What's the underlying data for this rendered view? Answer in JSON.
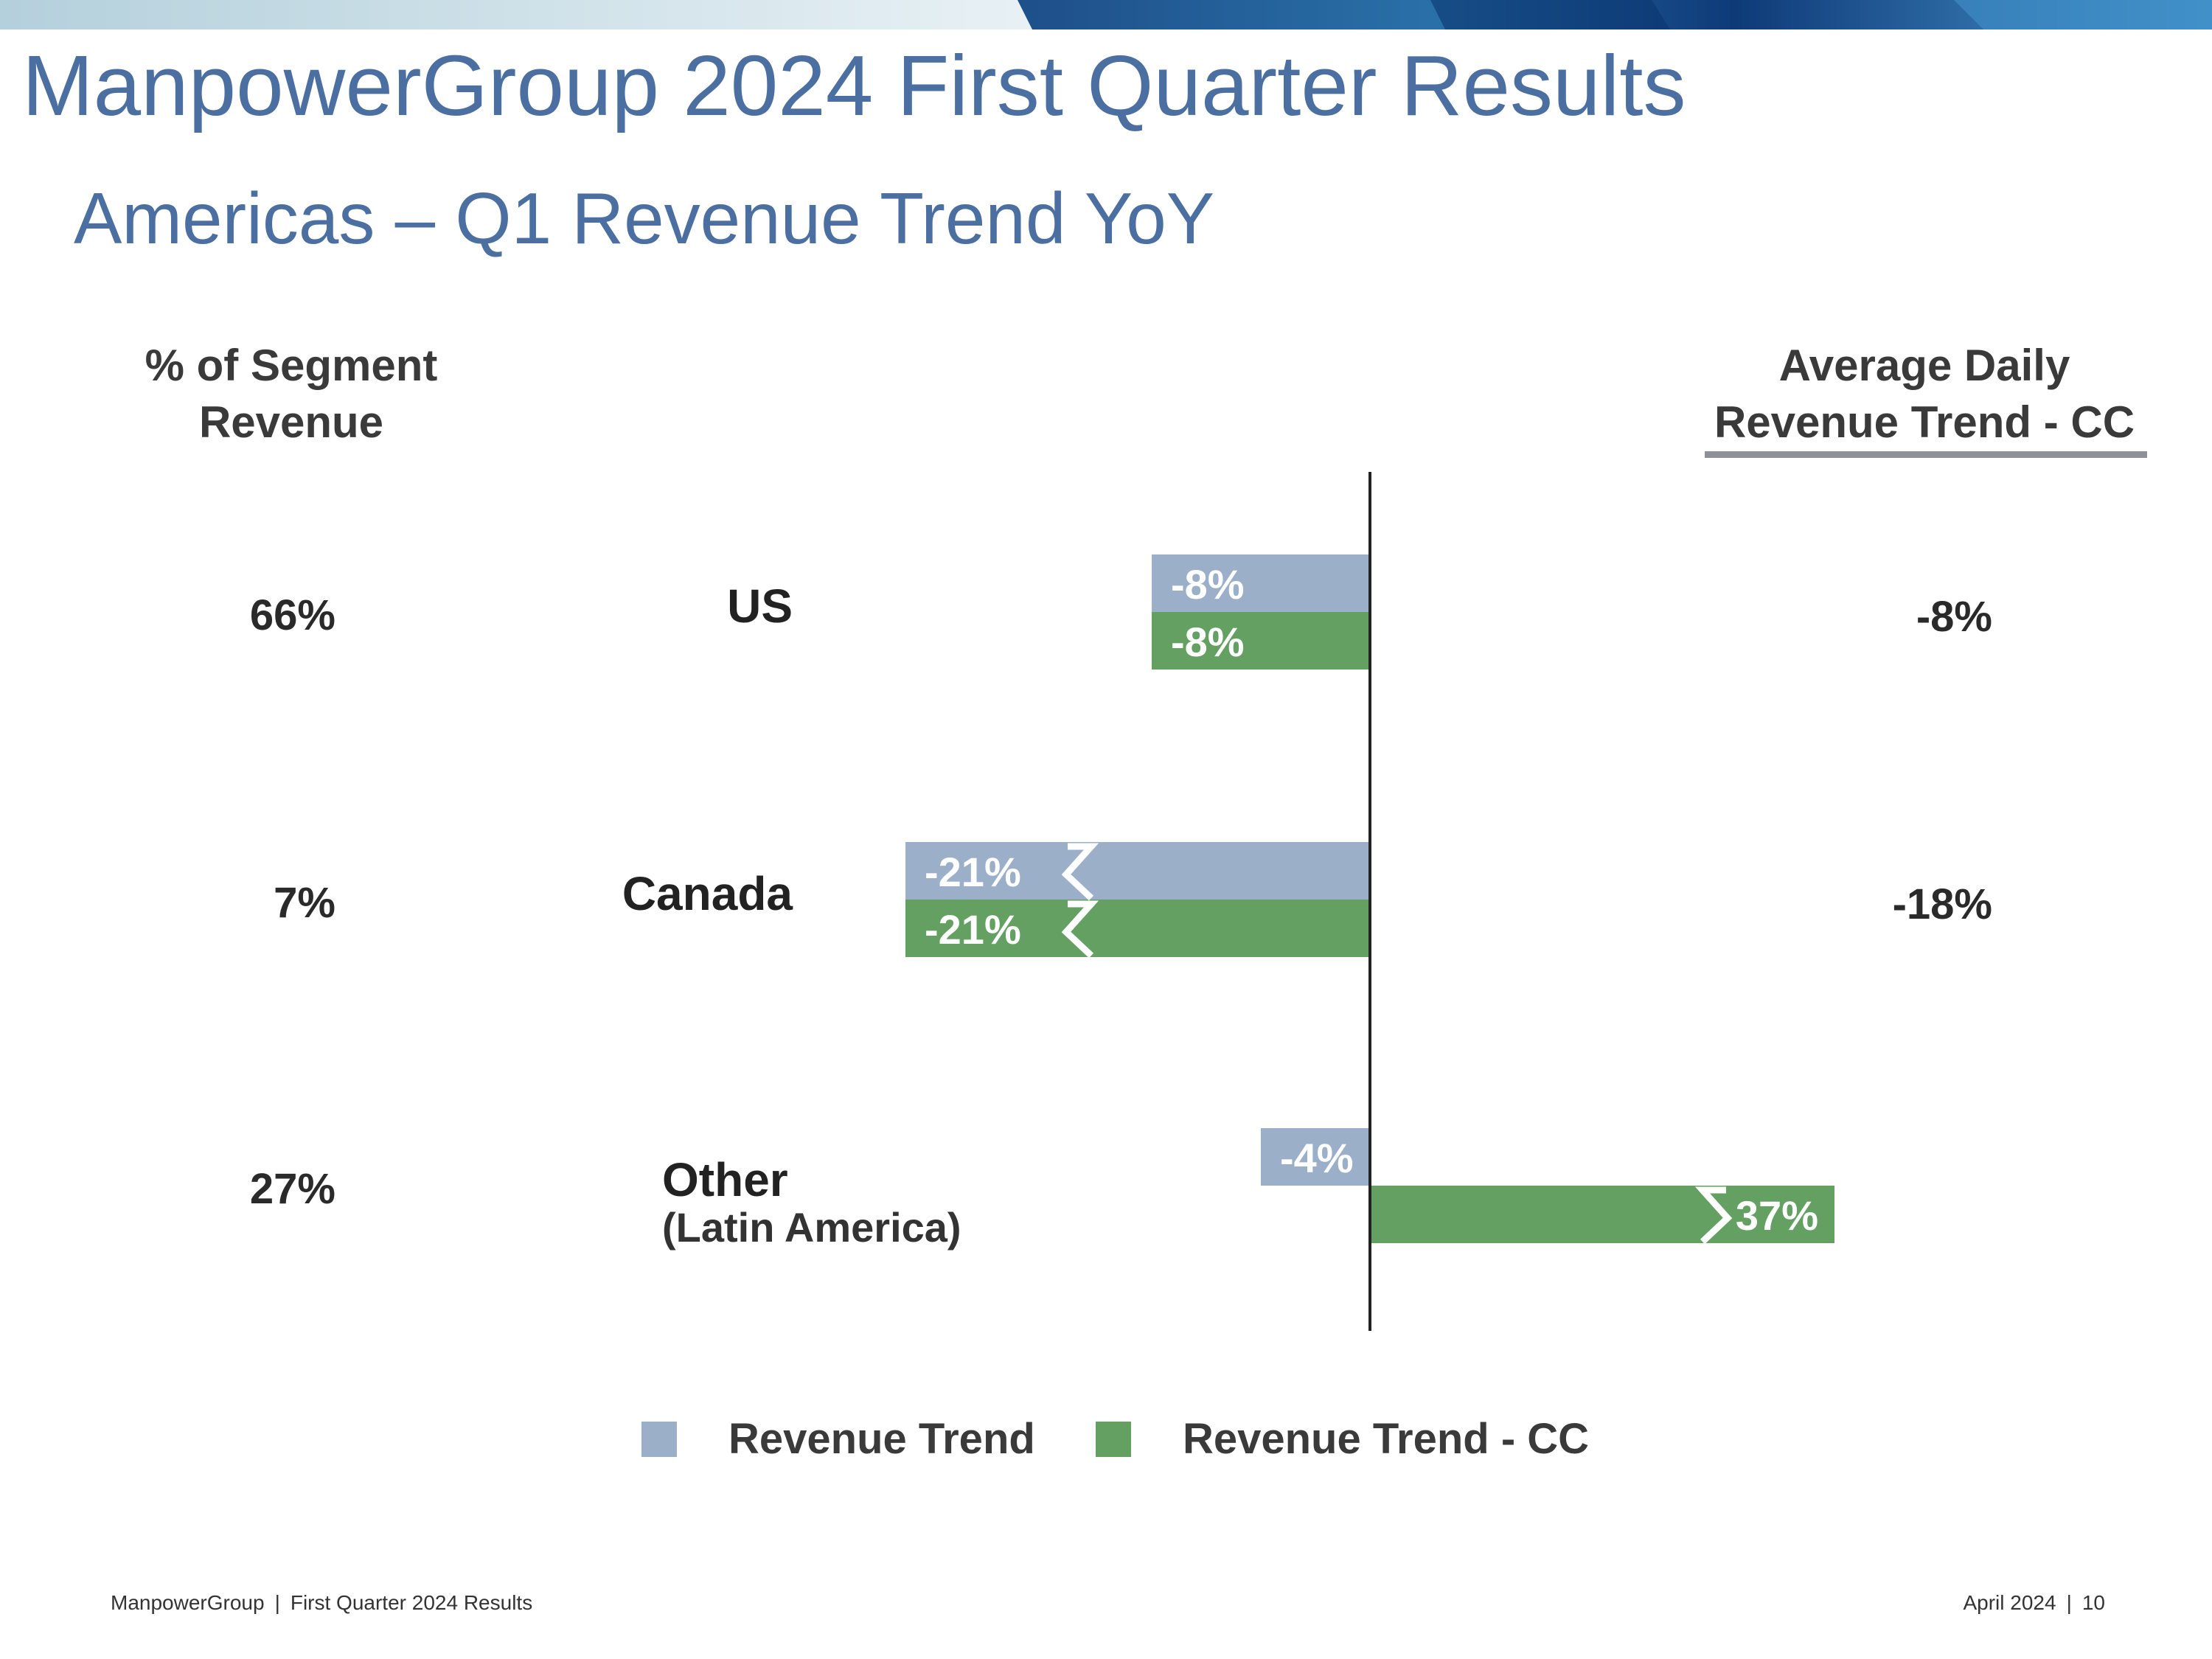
{
  "slide": {
    "title": "ManpowerGroup 2024 First Quarter Results",
    "subtitle": "Americas – Q1 Revenue Trend YoY"
  },
  "columns": {
    "left_header_line1": "% of Segment",
    "left_header_line2": "Revenue",
    "right_header_line1": "Average Daily",
    "right_header_line2": "Revenue Trend - CC"
  },
  "chart_data": {
    "type": "bar",
    "orientation": "horizontal",
    "categories": [
      "US",
      "Canada",
      "Other"
    ],
    "category_sublabels": [
      "",
      "",
      "(Latin America)"
    ],
    "segment_share": [
      "66%",
      "7%",
      "27%"
    ],
    "average_daily_revenue_trend_cc": [
      "-8%",
      "-18%",
      ""
    ],
    "series": [
      {
        "name": "Revenue Trend",
        "values": [
          -8,
          -21,
          -4
        ],
        "labels": [
          "-8%",
          "-21%",
          "-4%"
        ],
        "color": "#9bb0c8",
        "axis_break": [
          false,
          true,
          false
        ]
      },
      {
        "name": "Revenue Trend - CC",
        "values": [
          -8,
          -21,
          37
        ],
        "labels": [
          "-8%",
          "-21%",
          "37%"
        ],
        "color": "#64a062",
        "axis_break": [
          false,
          true,
          true
        ]
      }
    ],
    "legend": [
      "Revenue Trend",
      "Revenue Trend - CC"
    ],
    "legend_position": "bottom",
    "grid": false
  },
  "footer": {
    "left_company": "ManpowerGroup",
    "left_separator": "|",
    "left_title": "First Quarter 2024 Results",
    "date": "April 2024",
    "separator": "|",
    "page": "10"
  },
  "colors": {
    "title": "#4a6fa0",
    "revenue_trend": "#9bb0c8",
    "revenue_trend_cc": "#64a062",
    "axis": "#222222",
    "underline": "#8e9096"
  }
}
